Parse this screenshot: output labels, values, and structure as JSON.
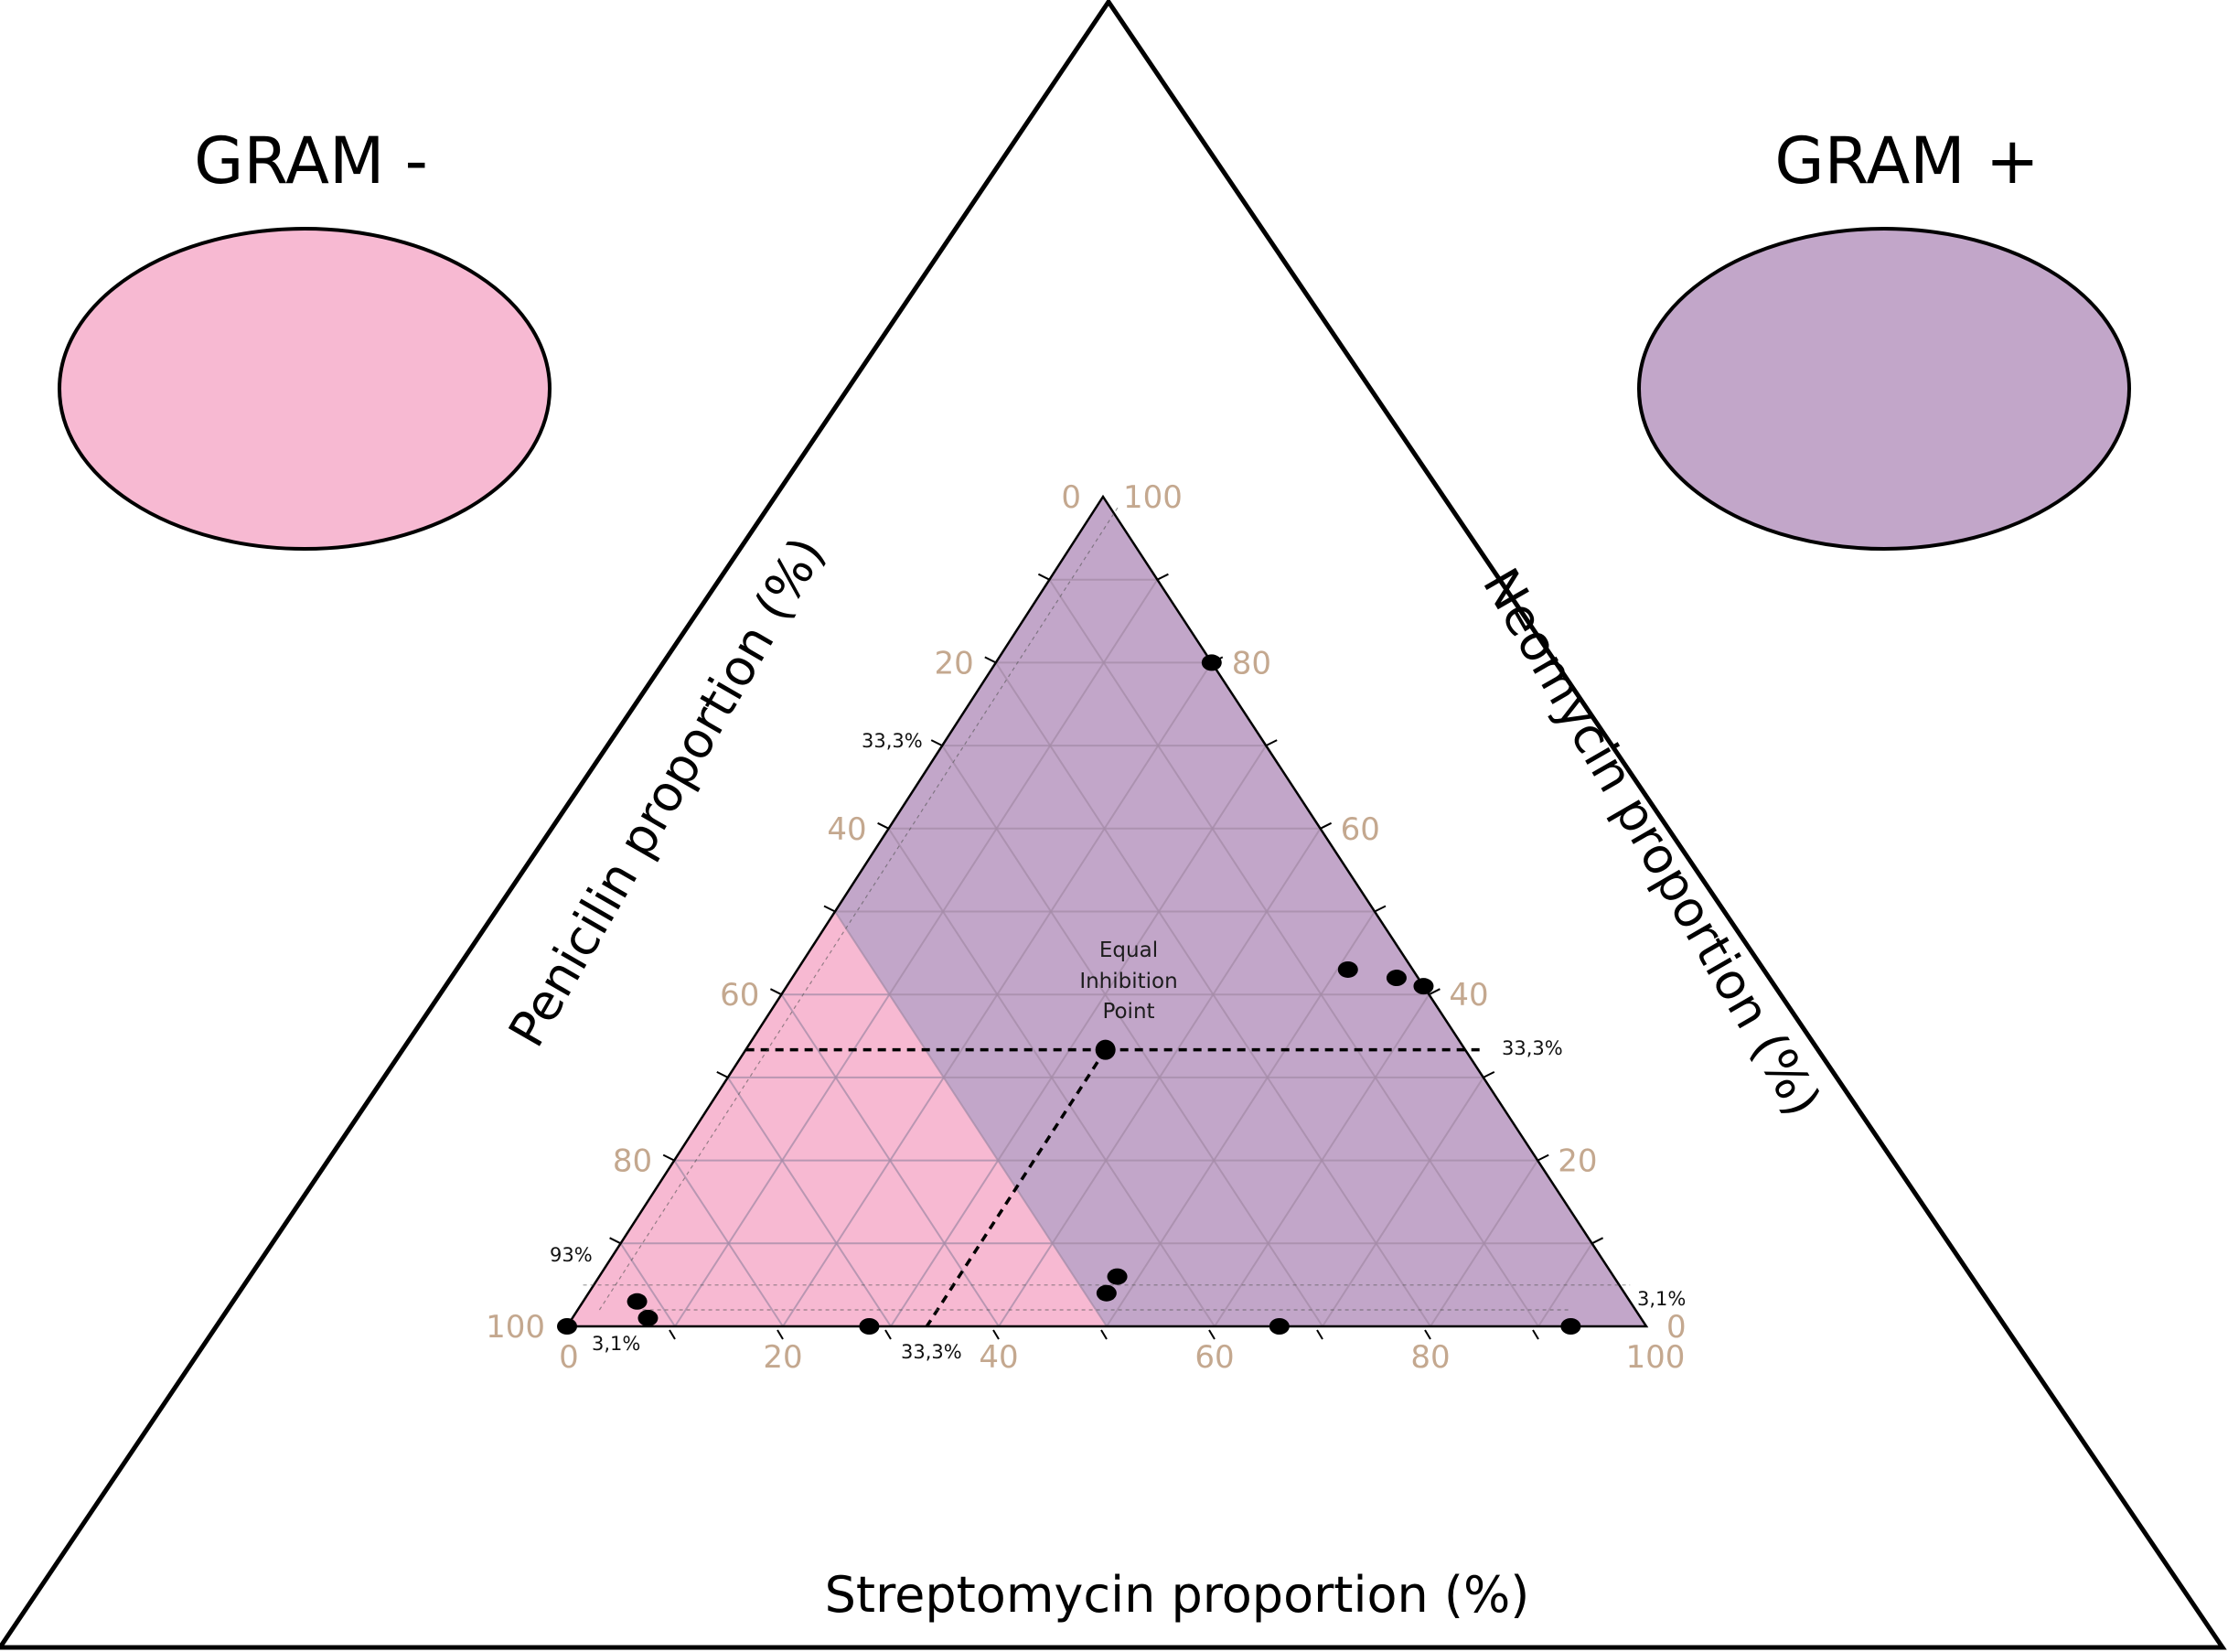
{
  "chart_data": {
    "type": "scatter",
    "subtype": "ternary",
    "title": "",
    "axes": {
      "bottom": {
        "label": "Streptomycin proportion (%)",
        "ticks": [
          "0",
          "20",
          "40",
          "60",
          "80",
          "100"
        ]
      },
      "left": {
        "label": "Penicilin proportion (%)",
        "ticks": [
          "0",
          "20",
          "40",
          "60",
          "80",
          "100"
        ]
      },
      "right": {
        "label": "Neomycin proportion (%)",
        "ticks": [
          "100",
          "80",
          "60",
          "40",
          "20",
          "0"
        ]
      }
    },
    "regions": [
      {
        "name": "GRAM -",
        "color": "#f7b9d2",
        "vertices": [
          [
            0,
            100,
            0
          ],
          [
            50,
            50,
            0
          ],
          [
            0,
            50,
            50
          ]
        ]
      },
      {
        "name": "GRAM +",
        "color": "#c2a6c9",
        "vertices": [
          [
            0,
            50,
            50
          ],
          [
            50,
            50,
            0
          ],
          [
            100,
            0,
            0
          ],
          [
            0,
            0,
            100
          ]
        ]
      }
    ],
    "legend": [
      {
        "label": "GRAM -",
        "color": "#f7b9d2",
        "position": "top-left"
      },
      {
        "label": "GRAM +",
        "color": "#c2a6c9",
        "position": "top-right"
      }
    ],
    "center_point": {
      "label_lines": [
        "Equal",
        "Inhibition",
        "Point"
      ],
      "streptomycin": 33.3,
      "penicilin": 33.3,
      "neomycin": 33.3
    },
    "guide_labels": {
      "left": "33,3%",
      "right": "33,3%",
      "bottom": "33,3%",
      "penicilin_93": "93%",
      "bottom_3": "3,1%",
      "right_3": "3,1%"
    },
    "points": [
      {
        "streptomycin": 0,
        "penicilin": 100,
        "neomycin": 0
      },
      {
        "streptomycin": 5,
        "penicilin": 92,
        "neomycin": 3
      },
      {
        "streptomycin": 7,
        "penicilin": 92,
        "neomycin": 1
      },
      {
        "streptomycin": 28,
        "penicilin": 72,
        "neomycin": 0
      },
      {
        "streptomycin": 48,
        "penicilin": 48,
        "neomycin": 4
      },
      {
        "streptomycin": 48,
        "penicilin": 46,
        "neomycin": 6
      },
      {
        "streptomycin": 66,
        "penicilin": 34,
        "neomycin": 0
      },
      {
        "streptomycin": 93,
        "penicilin": 7,
        "neomycin": 0
      },
      {
        "streptomycin": 51,
        "penicilin": 6,
        "neomycin": 43
      },
      {
        "streptomycin": 56,
        "penicilin": 2,
        "neomycin": 42
      },
      {
        "streptomycin": 59,
        "penicilin": 0,
        "neomycin": 41
      },
      {
        "streptomycin": 20,
        "penicilin": 0,
        "neomycin": 80
      }
    ],
    "tick_color": "#c4a88f",
    "grid": true
  }
}
